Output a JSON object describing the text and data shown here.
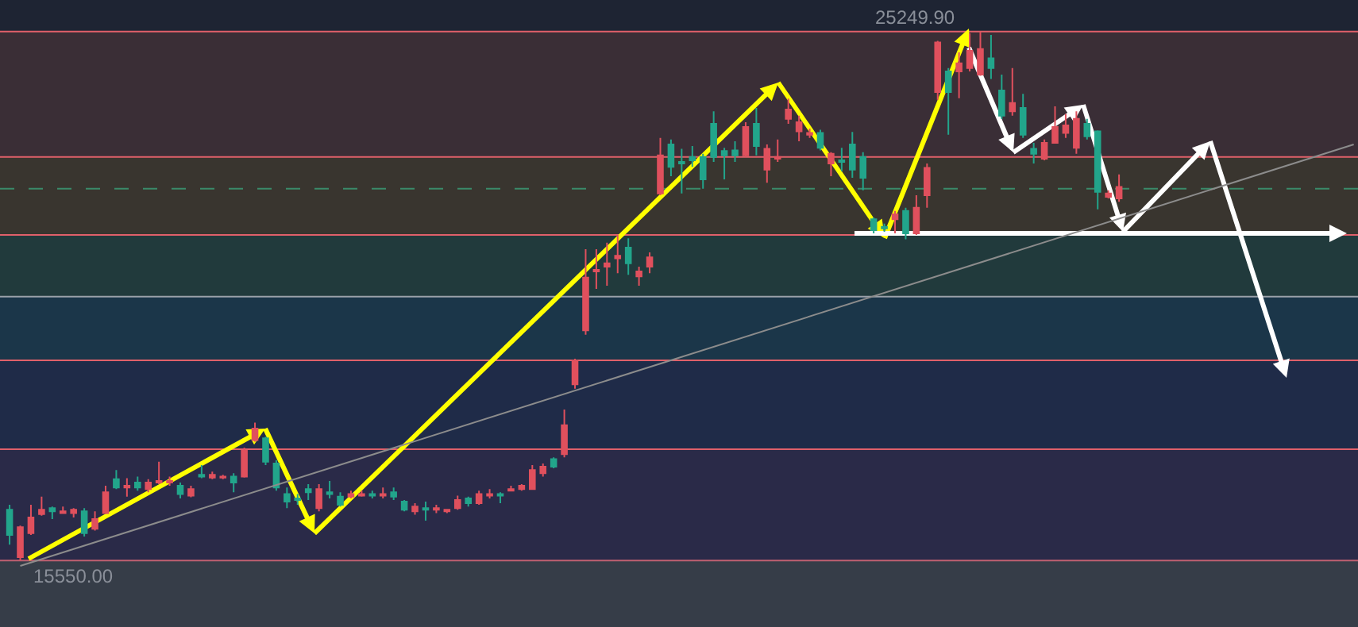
{
  "chart_data": {
    "type": "candlestick",
    "categories": [
      null,
      null,
      null,
      null,
      null,
      null,
      null,
      null,
      null,
      null,
      null,
      null,
      null,
      null,
      null,
      null,
      null,
      null,
      null,
      null,
      null,
      null,
      null,
      null,
      null,
      null,
      null,
      null,
      null,
      null,
      null,
      null,
      null,
      null,
      null,
      null,
      null,
      null,
      null,
      null,
      null,
      null,
      null,
      null,
      null,
      null,
      null,
      null,
      null,
      null,
      null,
      null,
      null,
      null,
      null,
      null,
      null,
      null,
      null,
      null,
      null,
      null,
      null,
      null,
      null,
      null,
      null,
      null,
      null,
      null,
      null,
      null,
      null,
      null,
      null,
      null,
      null,
      null,
      null,
      null,
      null,
      null,
      null,
      null,
      null,
      null,
      null,
      null,
      null,
      null,
      null,
      null,
      null,
      null,
      null,
      null,
      null,
      null,
      null,
      null,
      null,
      null,
      null,
      null,
      null,
      null,
      null,
      null,
      null,
      null,
      null,
      null,
      null,
      null,
      null,
      null,
      null,
      null,
      null,
      null,
      null,
      null,
      null,
      null,
      null,
      null,
      null
    ],
    "ohlc": [
      [
        16480,
        16570,
        15840,
        16020
      ],
      [
        15610,
        16190,
        15550,
        16160
      ],
      [
        16050,
        16570,
        16020,
        16340
      ],
      [
        16400,
        16720,
        16370,
        16480
      ],
      [
        16510,
        16540,
        16310,
        16450
      ],
      [
        16420,
        16540,
        16420,
        16450
      ],
      [
        16420,
        16510,
        16340,
        16480
      ],
      [
        16450,
        16510,
        15990,
        16050
      ],
      [
        16130,
        16450,
        16100,
        16310
      ],
      [
        16420,
        16920,
        16400,
        16800
      ],
      [
        17040,
        17210,
        16860,
        16890
      ],
      [
        16890,
        17060,
        16720,
        16920
      ],
      [
        16980,
        17090,
        16830,
        16890
      ],
      [
        16860,
        17040,
        16800,
        16980
      ],
      [
        16980,
        17360,
        16950,
        17010
      ],
      [
        16980,
        17090,
        16920,
        17010
      ],
      [
        16920,
        16980,
        16690,
        16770
      ],
      [
        16740,
        16920,
        16710,
        16860
      ],
      [
        17120,
        17300,
        17060,
        17090
      ],
      [
        17070,
        17180,
        17040,
        17120
      ],
      [
        17070,
        17120,
        17040,
        17090
      ],
      [
        17090,
        17150,
        16800,
        16980
      ],
      [
        17090,
        17620,
        17070,
        17560
      ],
      [
        17760,
        18080,
        17730,
        17970
      ],
      [
        17790,
        17820,
        17300,
        17360
      ],
      [
        17330,
        17390,
        16830,
        16890
      ],
      [
        16770,
        16890,
        16510,
        16630
      ],
      [
        16690,
        16770,
        16570,
        16660
      ],
      [
        16860,
        16950,
        16660,
        16800
      ],
      [
        16510,
        16950,
        16450,
        16860
      ],
      [
        16800,
        17010,
        16690,
        16770
      ],
      [
        16720,
        16800,
        16540,
        16570
      ],
      [
        16720,
        16830,
        16690,
        16770
      ],
      [
        16740,
        16830,
        16720,
        16770
      ],
      [
        16770,
        16830,
        16690,
        16740
      ],
      [
        16740,
        16890,
        16690,
        16770
      ],
      [
        16800,
        16890,
        16660,
        16720
      ],
      [
        16630,
        16660,
        16450,
        16480
      ],
      [
        16450,
        16600,
        16390,
        16540
      ],
      [
        16510,
        16630,
        16280,
        16480
      ],
      [
        16480,
        16570,
        16420,
        16510
      ],
      [
        16450,
        16480,
        16420,
        16480
      ],
      [
        16510,
        16740,
        16480,
        16660
      ],
      [
        16690,
        16720,
        16540,
        16600
      ],
      [
        16600,
        16830,
        16570,
        16770
      ],
      [
        16740,
        16860,
        16690,
        16770
      ],
      [
        16770,
        16800,
        16600,
        16740
      ],
      [
        16830,
        16920,
        16830,
        16860
      ],
      [
        16860,
        16950,
        16830,
        16920
      ],
      [
        16860,
        17300,
        16860,
        17210
      ],
      [
        17150,
        17330,
        17090,
        17270
      ],
      [
        17410,
        17440,
        17240,
        17270
      ],
      [
        17500,
        18320,
        17440,
        18030
      ],
      [
        18780,
        19250,
        18700,
        19220
      ],
      [
        19770,
        21260,
        19690,
        20740
      ],
      [
        20850,
        21260,
        20530,
        20880
      ],
      [
        20940,
        21380,
        20590,
        21000
      ],
      [
        21090,
        21520,
        20820,
        21140
      ],
      [
        21290,
        21460,
        20790,
        21000
      ],
      [
        20760,
        20940,
        20590,
        20850
      ],
      [
        20940,
        21200,
        20820,
        21110
      ],
      [
        22280,
        23300,
        22250,
        22980
      ],
      [
        23180,
        23270,
        22600,
        22770
      ],
      [
        22860,
        23100,
        22280,
        22830
      ],
      [
        22950,
        23150,
        22770,
        22890
      ],
      [
        22950,
        23010,
        22370,
        22540
      ],
      [
        23560,
        23790,
        22860,
        22950
      ],
      [
        23060,
        23120,
        22540,
        22980
      ],
      [
        23070,
        23240,
        22860,
        22980
      ],
      [
        22980,
        23590,
        22950,
        23500
      ],
      [
        23560,
        23850,
        22980,
        23150
      ],
      [
        22720,
        23180,
        22480,
        23100
      ],
      [
        22920,
        23270,
        22860,
        22950
      ],
      [
        23650,
        24020,
        23560,
        23820
      ],
      [
        23420,
        23710,
        23240,
        23590
      ],
      [
        23360,
        23470,
        23300,
        23390
      ],
      [
        23390,
        23450,
        23070,
        23120
      ],
      [
        22830,
        23040,
        22600,
        23010
      ],
      [
        22890,
        23120,
        22690,
        22860
      ],
      [
        23180,
        23410,
        22570,
        22720
      ],
      [
        22950,
        23040,
        22340,
        22570
      ],
      [
        21810,
        21840,
        21550,
        21610
      ],
      [
        21670,
        21730,
        21580,
        21640
      ],
      [
        21810,
        21960,
        21550,
        21900
      ],
      [
        21960,
        22020,
        21440,
        21550
      ],
      [
        21550,
        22250,
        21520,
        22020
      ],
      [
        22250,
        22830,
        22020,
        22750
      ],
      [
        24140,
        25080,
        24000,
        25050
      ],
      [
        24520,
        24580,
        23360,
        24140
      ],
      [
        24520,
        24870,
        24030,
        24670
      ],
      [
        24580,
        25220,
        24520,
        24900
      ],
      [
        24460,
        25249.9,
        24440,
        24930
      ],
      [
        24760,
        25190,
        24380,
        24580
      ],
      [
        24170,
        24460,
        23650,
        23710
      ],
      [
        23790,
        24580,
        23710,
        23940
      ],
      [
        23850,
        24110,
        23300,
        23360
      ],
      [
        23100,
        23210,
        22830,
        23010
      ],
      [
        22920,
        23270,
        22890,
        23210
      ],
      [
        23210,
        23880,
        23200,
        23500
      ],
      [
        23390,
        23740,
        23300,
        23530
      ],
      [
        23120,
        23790,
        23010,
        23650
      ],
      [
        23560,
        23650,
        23270,
        23330
      ],
      [
        23420,
        23440,
        21990,
        22310
      ],
      [
        22220,
        22340,
        22190,
        22280
      ],
      [
        22190,
        22630,
        22130,
        22400
      ],
      null,
      null,
      null,
      null,
      null,
      null,
      null,
      null,
      null,
      null,
      null,
      null,
      null,
      null,
      null,
      null,
      null,
      null,
      null,
      null,
      null,
      null
    ],
    "series": [
      {
        "type": "line",
        "values": [
          null,
          15450,
          null,
          null,
          null,
          null,
          null,
          null,
          null,
          null,
          null,
          null,
          null,
          null,
          null,
          null,
          null,
          null,
          null,
          null,
          null,
          null,
          null,
          null,
          null,
          null,
          null,
          null,
          null,
          null,
          null,
          null,
          null,
          null,
          null,
          null,
          null,
          null,
          null,
          null,
          null,
          null,
          null,
          null,
          null,
          null,
          null,
          null,
          null,
          null,
          null,
          null,
          null,
          null,
          null,
          null,
          null,
          null,
          null,
          null,
          null,
          null,
          null,
          null,
          null,
          null,
          null,
          null,
          null,
          null,
          null,
          null,
          null,
          null,
          null,
          null,
          null,
          null,
          null,
          null,
          null,
          null,
          null,
          null,
          null,
          null,
          null,
          null,
          null,
          null,
          null,
          null,
          null,
          null,
          null,
          null,
          null,
          null,
          null,
          null,
          null,
          null,
          null,
          null,
          null,
          null,
          null,
          null,
          null,
          null,
          null,
          null,
          null,
          null,
          null,
          null,
          null,
          null,
          null,
          null,
          null,
          null,
          null,
          null,
          null,
          null,
          23180
        ],
        "color": "#8c8c8c"
      }
    ],
    "ylim": [
      14330,
      25830
    ],
    "bands": [
      {
        "axis": "y",
        "from": 22950,
        "to": 25250,
        "color": "#3a2e36"
      },
      {
        "axis": "y",
        "from": 21520,
        "to": 22950,
        "color": "#39352f"
      },
      {
        "axis": "y",
        "from": 20390,
        "to": 21520,
        "color": "#213a3c"
      },
      {
        "axis": "y",
        "from": 19220,
        "to": 20390,
        "color": "#1b3649"
      },
      {
        "axis": "y",
        "from": 17590,
        "to": 19220,
        "color": "#1f2b48"
      },
      {
        "axis": "y",
        "from": 15550,
        "to": 17590,
        "color": "#2a2a48"
      },
      {
        "axis": "y",
        "from": 14330,
        "to": 15550,
        "color": "#363d48"
      }
    ],
    "ref_lines": [
      {
        "axis": "y",
        "value": 25250,
        "color": "#e0606a"
      },
      {
        "axis": "y",
        "value": 22950,
        "color": "#e0606a"
      },
      {
        "axis": "y",
        "value": 21520,
        "color": "#e0606a"
      },
      {
        "axis": "y",
        "value": 20390,
        "color": "#9aa0a8"
      },
      {
        "axis": "y",
        "value": 19220,
        "color": "#e0606a"
      },
      {
        "axis": "y",
        "value": 17590,
        "color": "#e0606a"
      },
      {
        "axis": "y",
        "value": 15550,
        "color": "#c06070"
      },
      {
        "axis": "y",
        "value": 22370,
        "color": "#3a8a6a",
        "line_style": "dashed"
      }
    ],
    "annotations": [
      {
        "text": "25249.90",
        "y": 25249.9
      },
      {
        "text": "15550.00",
        "y": 15550
      }
    ]
  }
}
